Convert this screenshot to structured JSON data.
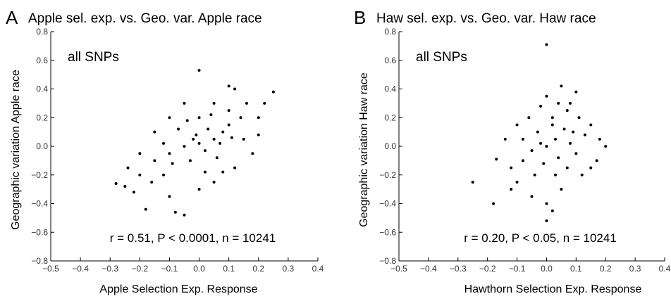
{
  "chart_data": [
    {
      "type": "scatter",
      "panel_label": "A",
      "title": "Apple sel. exp. vs. Geo. var. Apple race",
      "inset_label": "all SNPs",
      "annotation": "r = 0.51, P < 0.0001, n = 10241",
      "x_label": "Apple Selection Exp. Response",
      "y_label": "Geographic variation Apple race",
      "color": "#000000",
      "xlim": [
        -0.5,
        0.4
      ],
      "ylim": [
        -0.8,
        0.8
      ],
      "xticks": [
        {
          "value": -0.5,
          "label": "−0.5"
        },
        {
          "value": -0.4,
          "label": "−0.4"
        },
        {
          "value": -0.3,
          "label": "−0.3"
        },
        {
          "value": -0.2,
          "label": "−0.2"
        },
        {
          "value": -0.1,
          "label": "−0.1"
        },
        {
          "value": 0,
          "label": "0.0"
        },
        0.1,
        0.2,
        0.3,
        0.4
      ],
      "yticks": [
        {
          "value": -0.8,
          "label": "−0.8"
        },
        {
          "value": -0.6,
          "label": "−0.6"
        },
        {
          "value": -0.4,
          "label": "−0.4"
        },
        {
          "value": -0.2,
          "label": "−0.2"
        },
        {
          "value": 0,
          "label": "0.0"
        },
        0.2,
        0.4,
        0.6,
        0.8
      ],
      "x": [
        -0.1,
        -0.05,
        0,
        0.05,
        0.02,
        -0.02,
        0.08,
        0.1,
        -0.15,
        -0.2,
        -0.25,
        -0.28,
        -0.22,
        -0.18,
        -0.08,
        -0.05,
        -0.1,
        0,
        0.05,
        0.12,
        0.15,
        0.2,
        0.22,
        0.25,
        0.1,
        0.12,
        0.05,
        0,
        -0.05,
        -0.1,
        -0.15,
        -0.2,
        0.18,
        0.03,
        -0.03,
        0.06,
        -0.12,
        0.14,
        0.08,
        -0.16,
        0,
        0.1,
        -0.07,
        0.02,
        0.16,
        -0.24,
        0.2,
        -0.12,
        0.04,
        -0.01,
        0.07,
        -0.09,
        0.11,
        -0.04
      ],
      "y": [
        -0.05,
        0,
        0.02,
        0.05,
        -0.03,
        0.05,
        0.1,
        0.15,
        -0.1,
        -0.2,
        -0.28,
        -0.26,
        -0.32,
        -0.44,
        -0.46,
        -0.48,
        -0.35,
        -0.3,
        -0.25,
        -0.15,
        0.05,
        0.2,
        0.3,
        0.38,
        0.42,
        0.4,
        0.3,
        0.53,
        0.3,
        0.2,
        0.1,
        -0.05,
        -0.05,
        0.12,
        -0.1,
        -0.08,
        0.02,
        0.2,
        -0.18,
        -0.25,
        0.2,
        0.25,
        0.12,
        -0.18,
        0.3,
        -0.15,
        0.08,
        -0.2,
        0.22,
        0.08,
        0.02,
        -0.12,
        0.06,
        0.18
      ]
    },
    {
      "type": "scatter",
      "panel_label": "B",
      "title": "Haw sel. exp. vs. Geo. var. Haw race",
      "inset_label": "all SNPs",
      "annotation": "r = 0.20, P < 0.05, n = 10241",
      "x_label": "Hawthorn Selection Exp. Response",
      "y_label": "Geographic variation Haw race",
      "color": "#000000",
      "xlim": [
        -0.5,
        0.4
      ],
      "ylim": [
        -0.8,
        0.8
      ],
      "xticks": [
        {
          "value": -0.5,
          "label": "−0.5"
        },
        {
          "value": -0.4,
          "label": "−0.4"
        },
        {
          "value": -0.3,
          "label": "−0.3"
        },
        {
          "value": -0.2,
          "label": "−0.2"
        },
        {
          "value": -0.1,
          "label": "−0.1"
        },
        {
          "value": 0,
          "label": "0.0"
        },
        0.1,
        0.2,
        0.3,
        0.4
      ],
      "yticks": [
        {
          "value": -0.8,
          "label": "−0.8"
        },
        {
          "value": -0.6,
          "label": "−0.6"
        },
        {
          "value": -0.4,
          "label": "−0.4"
        },
        {
          "value": -0.2,
          "label": "−0.2"
        },
        {
          "value": 0,
          "label": "0.0"
        },
        0.2,
        0.4,
        0.6,
        0.8
      ],
      "x": [
        0,
        0.03,
        -0.05,
        0.08,
        0.02,
        0.04,
        0.05,
        0,
        0.08,
        0.1,
        -0.02,
        0.15,
        0.18,
        0.2,
        0.17,
        0.12,
        0.05,
        0,
        -0.05,
        0.02,
        -0.1,
        -0.12,
        -0.14,
        -0.1,
        -0.06,
        0.1,
        0.06,
        -0.03,
        0.13,
        -0.08,
        0,
        -0.25,
        -0.18,
        -0.17,
        0,
        0.03,
        0.07,
        -0.04,
        0.11,
        -0.08,
        0.02,
        0.04,
        -0.01,
        0.09,
        0.15,
        -0.12,
        0.07,
        -0.02
      ],
      "y": [
        0,
        0.05,
        -0.03,
        0.02,
        0.2,
        0.3,
        0.42,
        0.35,
        0.3,
        0.38,
        0.28,
        0.15,
        0.05,
        0,
        -0.1,
        -0.2,
        -0.3,
        -0.4,
        -0.35,
        -0.45,
        -0.25,
        -0.15,
        0.05,
        0.15,
        0.2,
        -0.05,
        0.12,
        0.1,
        0.08,
        -0.1,
        0.71,
        -0.25,
        -0.4,
        -0.09,
        -0.52,
        -0.2,
        -0.15,
        -0.2,
        0.2,
        0.05,
        0.15,
        -0.08,
        -0.12,
        0.1,
        -0.15,
        -0.3,
        0.25,
        0.02
      ]
    }
  ]
}
